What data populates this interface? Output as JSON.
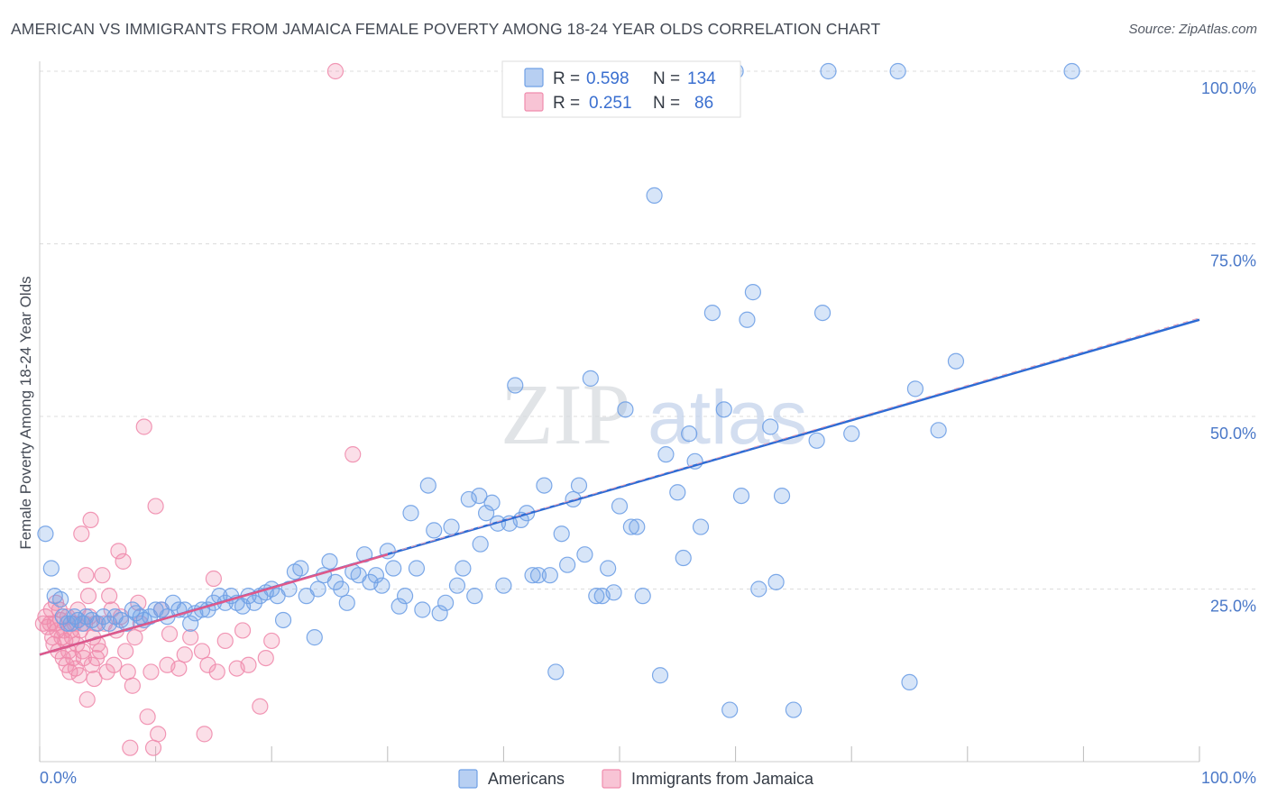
{
  "title": "AMERICAN VS IMMIGRANTS FROM JAMAICA FEMALE POVERTY AMONG 18-24 YEAR OLDS CORRELATION CHART",
  "source": "Source: ZipAtlas.com",
  "watermark": {
    "zip": "ZIP",
    "atlas": "atlas"
  },
  "colors": {
    "americans": "#6fa0e6",
    "jamaica": "#f08cad",
    "americans_line": "#2d6bd4",
    "jamaica_line": "#e0588a",
    "axis_text": "#4a78c8",
    "grid": "#dcdcdc"
  },
  "legend": {
    "r_label": "R =",
    "n_label": "N =",
    "americans": {
      "r": "0.598",
      "n": "134"
    },
    "jamaica": {
      "r": "0.251",
      "n": "86"
    }
  },
  "bottom_legend": {
    "americans": "Americans",
    "jamaica": "Immigrants from Jamaica"
  },
  "chart_data": {
    "type": "scatter",
    "title": "AMERICAN VS IMMIGRANTS FROM JAMAICA FEMALE POVERTY AMONG 18-24 YEAR OLDS CORRELATION CHART",
    "xlabel": "",
    "ylabel": "Female Poverty Among 18-24 Year Olds",
    "xlim": [
      0,
      100
    ],
    "ylim": [
      0,
      100
    ],
    "x_tick_labels": [
      "0.0%",
      "100.0%"
    ],
    "y_tick_labels": [
      "25.0%",
      "50.0%",
      "75.0%",
      "100.0%"
    ],
    "y_ticks": [
      25,
      50,
      75,
      100
    ],
    "grid": true,
    "legend_position": "top-center",
    "series": [
      {
        "name": "Americans",
        "r": 0.598,
        "n": 134,
        "trend": {
          "x0": 0,
          "y0": 15.5,
          "x1": 100,
          "y1": 64
        },
        "points": [
          [
            0.5,
            33
          ],
          [
            1,
            28
          ],
          [
            1.3,
            24
          ],
          [
            1.8,
            23.5
          ],
          [
            2,
            21
          ],
          [
            2.4,
            20
          ],
          [
            2.7,
            20
          ],
          [
            3,
            21
          ],
          [
            3.3,
            20.5
          ],
          [
            3.7,
            20
          ],
          [
            4,
            21
          ],
          [
            4.5,
            20.5
          ],
          [
            5,
            20
          ],
          [
            5.5,
            21
          ],
          [
            6,
            20
          ],
          [
            6.5,
            21
          ],
          [
            7,
            20.5
          ],
          [
            7.5,
            20
          ],
          [
            8,
            22
          ],
          [
            8.3,
            21.5
          ],
          [
            8.7,
            21
          ],
          [
            9,
            20.5
          ],
          [
            9.5,
            21
          ],
          [
            10,
            22
          ],
          [
            10.5,
            22
          ],
          [
            11,
            21
          ],
          [
            11.5,
            23
          ],
          [
            12,
            22
          ],
          [
            12.5,
            22
          ],
          [
            13,
            20
          ],
          [
            13.4,
            21.5
          ],
          [
            14,
            22
          ],
          [
            14.5,
            22
          ],
          [
            15,
            23
          ],
          [
            15.5,
            24
          ],
          [
            16,
            23
          ],
          [
            16.5,
            24
          ],
          [
            17,
            23
          ],
          [
            17.5,
            22.5
          ],
          [
            18,
            24
          ],
          [
            18.5,
            23
          ],
          [
            19,
            24
          ],
          [
            19.5,
            24.5
          ],
          [
            20,
            25
          ],
          [
            20.5,
            24
          ],
          [
            21,
            20.5
          ],
          [
            21.5,
            25
          ],
          [
            22,
            27.5
          ],
          [
            22.5,
            28
          ],
          [
            23,
            24
          ],
          [
            23.7,
            18
          ],
          [
            24,
            25
          ],
          [
            24.5,
            27
          ],
          [
            25,
            29
          ],
          [
            25.5,
            26
          ],
          [
            26,
            25
          ],
          [
            26.5,
            23
          ],
          [
            27,
            27.5
          ],
          [
            27.5,
            27
          ],
          [
            28,
            30
          ],
          [
            28.5,
            26
          ],
          [
            29,
            27
          ],
          [
            29.5,
            25.5
          ],
          [
            30,
            30.5
          ],
          [
            30.5,
            28
          ],
          [
            31,
            22.5
          ],
          [
            31.5,
            24
          ],
          [
            32,
            36
          ],
          [
            32.5,
            28
          ],
          [
            33,
            22
          ],
          [
            33.5,
            40
          ],
          [
            34,
            33.5
          ],
          [
            34.5,
            21.5
          ],
          [
            35,
            23
          ],
          [
            35.5,
            34
          ],
          [
            36,
            25.5
          ],
          [
            36.5,
            28
          ],
          [
            37,
            38
          ],
          [
            37.5,
            24
          ],
          [
            37.9,
            38.5
          ],
          [
            38,
            31.5
          ],
          [
            38.5,
            36
          ],
          [
            39,
            37.5
          ],
          [
            39.5,
            34.5
          ],
          [
            40,
            25.5
          ],
          [
            40.5,
            34.5
          ],
          [
            41,
            54.5
          ],
          [
            41.5,
            35
          ],
          [
            42,
            36
          ],
          [
            42.5,
            27
          ],
          [
            43,
            27
          ],
          [
            43.5,
            40
          ],
          [
            44,
            27
          ],
          [
            44.5,
            13
          ],
          [
            45,
            33
          ],
          [
            45.5,
            28.5
          ],
          [
            46,
            38
          ],
          [
            46.5,
            40
          ],
          [
            47,
            30
          ],
          [
            47.5,
            55.5
          ],
          [
            48,
            24
          ],
          [
            48.5,
            24
          ],
          [
            49,
            28
          ],
          [
            49.5,
            24.5
          ],
          [
            50,
            37
          ],
          [
            50.5,
            51
          ],
          [
            51,
            34
          ],
          [
            51.5,
            34
          ],
          [
            52,
            24
          ],
          [
            53,
            82
          ],
          [
            53.5,
            12.5
          ],
          [
            54,
            44.5
          ],
          [
            55,
            39
          ],
          [
            55.5,
            29.5
          ],
          [
            56,
            47.5
          ],
          [
            56.5,
            43.5
          ],
          [
            57,
            34
          ],
          [
            58,
            65
          ],
          [
            59,
            51
          ],
          [
            59.5,
            7.5
          ],
          [
            60,
            100
          ],
          [
            60.5,
            38.5
          ],
          [
            61,
            64
          ],
          [
            61.5,
            68
          ],
          [
            62,
            25
          ],
          [
            63,
            48.5
          ],
          [
            63.5,
            26
          ],
          [
            64,
            38.5
          ],
          [
            65,
            7.5
          ],
          [
            67,
            46.5
          ],
          [
            67.5,
            65
          ],
          [
            68,
            100
          ],
          [
            70,
            47.5
          ],
          [
            74,
            100
          ],
          [
            75,
            11.5
          ],
          [
            75.5,
            54
          ],
          [
            77.5,
            48
          ],
          [
            79,
            58
          ],
          [
            89,
            100
          ]
        ]
      },
      {
        "name": "Immigrants from Jamaica",
        "r": 0.251,
        "n": 86,
        "trend": {
          "x0": 0,
          "y0": 15.5,
          "x1": 30,
          "y1": 30
        },
        "points": [
          [
            0.3,
            20
          ],
          [
            0.5,
            21
          ],
          [
            0.7,
            19.5
          ],
          [
            0.9,
            20
          ],
          [
            1,
            22
          ],
          [
            1.1,
            18
          ],
          [
            1.2,
            17
          ],
          [
            1.3,
            20
          ],
          [
            1.4,
            23
          ],
          [
            1.5,
            19
          ],
          [
            1.6,
            16
          ],
          [
            1.7,
            22
          ],
          [
            1.8,
            20.5
          ],
          [
            1.9,
            18
          ],
          [
            2,
            15
          ],
          [
            2.1,
            19
          ],
          [
            2.2,
            17.5
          ],
          [
            2.3,
            14
          ],
          [
            2.4,
            21
          ],
          [
            2.5,
            16
          ],
          [
            2.6,
            13
          ],
          [
            2.7,
            19
          ],
          [
            2.8,
            18
          ],
          [
            2.9,
            15
          ],
          [
            3,
            20
          ],
          [
            3.1,
            13.5
          ],
          [
            3.2,
            17
          ],
          [
            3.3,
            22
          ],
          [
            3.4,
            12.5
          ],
          [
            3.5,
            19
          ],
          [
            3.6,
            33
          ],
          [
            3.7,
            16
          ],
          [
            3.8,
            15
          ],
          [
            3.9,
            20
          ],
          [
            4,
            27
          ],
          [
            4.1,
            9
          ],
          [
            4.2,
            24
          ],
          [
            4.3,
            21
          ],
          [
            4.4,
            35
          ],
          [
            4.5,
            14
          ],
          [
            4.6,
            18
          ],
          [
            4.7,
            12
          ],
          [
            4.8,
            20
          ],
          [
            4.9,
            15
          ],
          [
            5,
            17
          ],
          [
            5.2,
            16
          ],
          [
            5.4,
            27
          ],
          [
            5.6,
            20
          ],
          [
            5.8,
            13
          ],
          [
            6,
            24
          ],
          [
            6.2,
            22
          ],
          [
            6.4,
            14
          ],
          [
            6.6,
            19
          ],
          [
            6.8,
            30.5
          ],
          [
            7,
            21
          ],
          [
            7.2,
            29
          ],
          [
            7.4,
            16
          ],
          [
            7.6,
            13
          ],
          [
            7.8,
            2
          ],
          [
            8,
            11
          ],
          [
            8.2,
            18
          ],
          [
            8.5,
            23
          ],
          [
            8.7,
            20
          ],
          [
            9,
            48.5
          ],
          [
            9.3,
            6.5
          ],
          [
            9.6,
            13
          ],
          [
            9.8,
            2
          ],
          [
            10,
            37
          ],
          [
            10.2,
            4
          ],
          [
            10.5,
            22
          ],
          [
            11,
            14
          ],
          [
            11.2,
            18.5
          ],
          [
            12,
            13.5
          ],
          [
            12.5,
            15.5
          ],
          [
            13,
            18
          ],
          [
            14,
            16
          ],
          [
            14.2,
            4
          ],
          [
            14.5,
            14
          ],
          [
            15,
            26.5
          ],
          [
            15.3,
            13
          ],
          [
            16,
            17.5
          ],
          [
            17,
            13.5
          ],
          [
            17.5,
            19
          ],
          [
            18,
            14
          ],
          [
            19,
            8
          ],
          [
            19.5,
            15
          ],
          [
            20,
            17.5
          ],
          [
            25.5,
            100
          ],
          [
            27,
            44.5
          ]
        ]
      }
    ]
  }
}
